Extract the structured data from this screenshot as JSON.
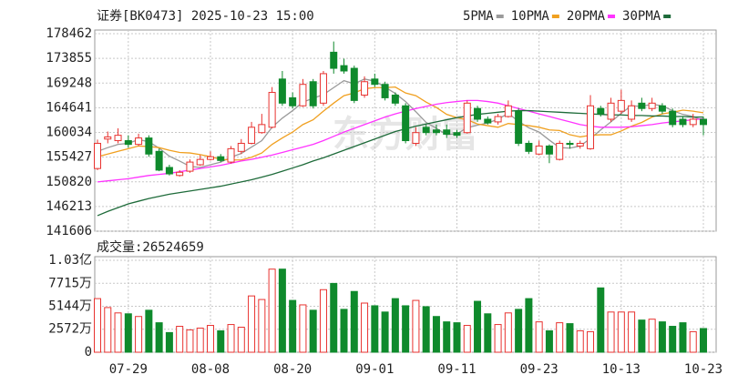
{
  "chart_data": [
    {
      "type": "candlestick",
      "title": "证券[BK0473] 2025-10-23 15:00",
      "watermark": "东方财富",
      "up_color": "#e8322f",
      "down_color": "#0f8a2c",
      "ylim": [
        141606,
        178462
      ],
      "yticks": [
        141606,
        146213,
        150820,
        155427,
        160034,
        164641,
        169248,
        173855,
        178462
      ],
      "grid": true,
      "open": [
        153300,
        158800,
        158500,
        158500,
        157800,
        159000,
        156500,
        153500,
        152000,
        152800,
        154000,
        155000,
        155500,
        154500,
        156500,
        158000,
        160000,
        161000,
        170000,
        166500,
        165000,
        169500,
        165500,
        175000,
        172500,
        172000,
        167000,
        170000,
        169000,
        167000,
        165000,
        158000,
        161000,
        160500,
        160500,
        160000,
        160000,
        164500,
        162500,
        162000,
        163000,
        164000,
        158000,
        156000,
        157500,
        155000,
        158000,
        157500,
        157000,
        164500,
        162500,
        164000,
        162500,
        165500,
        164500,
        165000,
        164000,
        162500,
        161500,
        162500
      ],
      "high": [
        158700,
        160200,
        160800,
        159500,
        159800,
        159500,
        157000,
        154000,
        153000,
        155000,
        155800,
        156500,
        156000,
        157500,
        158800,
        162000,
        163500,
        168500,
        171500,
        167500,
        170000,
        170000,
        171500,
        177000,
        173800,
        172500,
        170500,
        171000,
        169500,
        167500,
        165500,
        161000,
        161500,
        161500,
        161500,
        160500,
        166000,
        165000,
        163000,
        163500,
        166000,
        164500,
        158500,
        158500,
        157800,
        158500,
        158500,
        158500,
        167000,
        165000,
        166500,
        168000,
        166000,
        166500,
        166500,
        165500,
        164500,
        163000,
        163500,
        163000
      ],
      "low": [
        153000,
        158000,
        158000,
        157200,
        157500,
        155500,
        152800,
        152000,
        151800,
        152500,
        153800,
        154800,
        154500,
        154200,
        156000,
        157800,
        159800,
        160800,
        165000,
        164500,
        164800,
        164500,
        165000,
        171000,
        171000,
        165500,
        166500,
        168500,
        166000,
        165000,
        158000,
        157500,
        159500,
        159500,
        159000,
        159000,
        159800,
        162000,
        161500,
        161500,
        162800,
        157500,
        156000,
        155800,
        154300,
        154800,
        157000,
        157000,
        156800,
        163000,
        162000,
        163500,
        162000,
        164000,
        164000,
        163500,
        161000,
        161000,
        161000,
        159500
      ],
      "close": [
        158000,
        159200,
        159500,
        157800,
        159000,
        156000,
        153000,
        152300,
        152600,
        154500,
        155000,
        155500,
        154800,
        157000,
        158000,
        161000,
        161500,
        167500,
        165500,
        165000,
        169000,
        165000,
        171000,
        172000,
        171500,
        166000,
        169500,
        169000,
        166500,
        165500,
        158500,
        160000,
        160000,
        160000,
        159700,
        159500,
        165500,
        162500,
        161800,
        163000,
        165000,
        158000,
        156500,
        157500,
        156000,
        158000,
        157800,
        158000,
        165000,
        163500,
        165500,
        166000,
        165000,
        164500,
        165500,
        164000,
        161500,
        161500,
        162500,
        161500
      ],
      "series": [
        {
          "name": "5PMA",
          "color": "#9a9a9a",
          "values": [
            156500,
            157200,
            157800,
            158000,
            158700,
            158300,
            157100,
            155600,
            154700,
            153700,
            153500,
            154000,
            154500,
            155400,
            156100,
            157300,
            158500,
            161000,
            162700,
            164100,
            165700,
            166400,
            167100,
            168400,
            169700,
            169100,
            170000,
            169600,
            168500,
            167300,
            165800,
            163900,
            161900,
            160800,
            159600,
            159800,
            160900,
            161400,
            161800,
            162500,
            163600,
            162100,
            160900,
            160100,
            158600,
            157200,
            157100,
            157500,
            158900,
            160500,
            162000,
            163600,
            165000,
            164900,
            165300,
            165000,
            164100,
            163400,
            163000,
            162200
          ]
        },
        {
          "name": "10PMA",
          "color": "#f0a020",
          "values": [
            155500,
            156000,
            156500,
            157000,
            157500,
            157400,
            157200,
            156700,
            156300,
            156200,
            155900,
            155500,
            155000,
            154900,
            154900,
            155400,
            156200,
            157800,
            159000,
            160100,
            161500,
            162400,
            164000,
            165500,
            166900,
            167400,
            168200,
            168400,
            168400,
            168500,
            167400,
            166900,
            165700,
            164700,
            163400,
            162800,
            162400,
            161600,
            161300,
            161000,
            161700,
            161500,
            161300,
            161000,
            160500,
            160400,
            159600,
            159200,
            159500,
            159600,
            159600,
            160300,
            161200,
            161900,
            162900,
            163500,
            163800,
            164200,
            164000,
            163700
          ]
        },
        {
          "name": "20PMA",
          "color": "#ff33ff",
          "values": [
            150800,
            151000,
            151200,
            151400,
            151700,
            152000,
            152200,
            152400,
            152700,
            153000,
            153300,
            153600,
            153900,
            154300,
            154700,
            155000,
            155400,
            155800,
            156300,
            156800,
            157300,
            157800,
            158500,
            159300,
            160100,
            160800,
            161500,
            162200,
            162900,
            163500,
            164000,
            164500,
            164900,
            165300,
            165600,
            165800,
            166000,
            166000,
            165800,
            165500,
            165000,
            164500,
            164000,
            163500,
            163000,
            162500,
            162000,
            161500,
            161200,
            161000,
            161000,
            161000,
            161100,
            161300,
            161500,
            161800,
            162000,
            162200,
            162400,
            162600
          ]
        },
        {
          "name": "30PMA",
          "color": "#1e6b3a",
          "values": [
            144500,
            145300,
            146000,
            146700,
            147200,
            147700,
            148100,
            148500,
            148800,
            149100,
            149400,
            149700,
            150000,
            150400,
            150800,
            151200,
            151700,
            152200,
            152800,
            153400,
            154000,
            154700,
            155300,
            156000,
            156700,
            157400,
            158100,
            158800,
            159500,
            160200,
            160700,
            161200,
            161600,
            162000,
            162400,
            162800,
            163100,
            163400,
            163600,
            163800,
            164000,
            164100,
            164100,
            164000,
            163900,
            163800,
            163700,
            163600,
            163500,
            163400,
            163300,
            163300,
            163200,
            163200,
            163100,
            163100,
            163000,
            163000,
            162900,
            162900
          ]
        }
      ]
    },
    {
      "type": "volume",
      "volume_label": "成交量:26524659",
      "ylim": [
        0,
        10287
      ],
      "yticks": [
        0,
        {
          "value": 2572,
          "label": "2572万"
        },
        {
          "value": 5144,
          "label": "5144万"
        },
        {
          "value": 7715,
          "label": "7715万"
        },
        {
          "value": 10287,
          "label": "1.03亿"
        }
      ],
      "grid": true,
      "categories": [
        null,
        null,
        null,
        "07-29",
        null,
        null,
        null,
        null,
        null,
        null,
        null,
        "08-08",
        null,
        null,
        null,
        null,
        null,
        null,
        null,
        "08-20",
        null,
        null,
        null,
        null,
        null,
        null,
        null,
        "09-01",
        null,
        null,
        null,
        null,
        null,
        null,
        null,
        "09-11",
        null,
        null,
        null,
        null,
        null,
        null,
        null,
        "09-23",
        null,
        null,
        null,
        null,
        null,
        null,
        null,
        "10-13",
        null,
        null,
        null,
        null,
        null,
        null,
        null,
        "10-23"
      ],
      "values": [
        6000,
        5000,
        4400,
        4300,
        4000,
        4700,
        3300,
        2200,
        2900,
        2500,
        2700,
        3000,
        2400,
        3100,
        2800,
        6300,
        5900,
        9300,
        9300,
        5800,
        5300,
        4700,
        7000,
        7700,
        4800,
        6800,
        5500,
        5200,
        4500,
        6000,
        5200,
        5800,
        5100,
        4000,
        3400,
        3300,
        3000,
        5700,
        4300,
        3100,
        4400,
        4800,
        6000,
        3400,
        2400,
        3300,
        3200,
        2400,
        2300,
        7200,
        4500,
        4500,
        4500,
        3600,
        3700,
        3400,
        2900,
        3300,
        2300,
        2652.4659
      ]
    }
  ]
}
